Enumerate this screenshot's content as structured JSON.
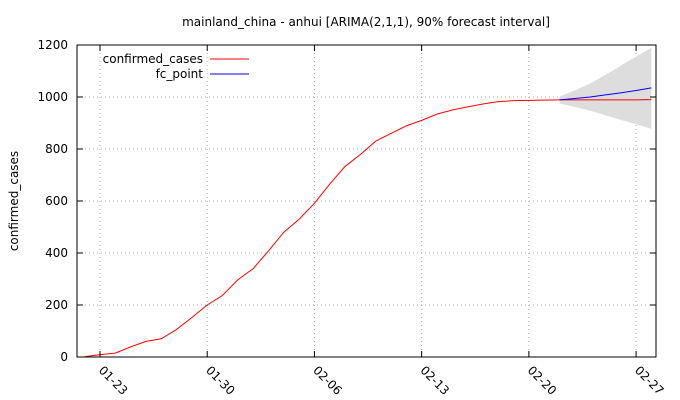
{
  "chart_data": {
    "type": "line",
    "title": "mainland_china - anhui [ARIMA(2,1,1), 90% forecast interval]",
    "xlabel": "",
    "ylabel": "confirmed_cases",
    "xlim": [
      "2020-01-21",
      "2020-02-28"
    ],
    "ylim": [
      0,
      1200
    ],
    "x_ticks": [
      "01-23",
      "01-30",
      "02-06",
      "02-13",
      "02-20",
      "02-27"
    ],
    "y_ticks": [
      0,
      200,
      400,
      600,
      800,
      1000,
      1200
    ],
    "grid": true,
    "legend_position": "top-left",
    "series": [
      {
        "name": "confirmed_cases",
        "color": "#ff0000",
        "points": [
          [
            "2020-01-22",
            1
          ],
          [
            "2020-01-23",
            9
          ],
          [
            "2020-01-24",
            15
          ],
          [
            "2020-01-25",
            39
          ],
          [
            "2020-01-26",
            60
          ],
          [
            "2020-01-27",
            70
          ],
          [
            "2020-01-28",
            106
          ],
          [
            "2020-01-29",
            152
          ],
          [
            "2020-01-30",
            200
          ],
          [
            "2020-01-31",
            237
          ],
          [
            "2020-02-01",
            297
          ],
          [
            "2020-02-02",
            340
          ],
          [
            "2020-02-03",
            408
          ],
          [
            "2020-02-04",
            480
          ],
          [
            "2020-02-05",
            530
          ],
          [
            "2020-02-06",
            591
          ],
          [
            "2020-02-07",
            665
          ],
          [
            "2020-02-08",
            733
          ],
          [
            "2020-02-09",
            779
          ],
          [
            "2020-02-10",
            830
          ],
          [
            "2020-02-11",
            860
          ],
          [
            "2020-02-12",
            889
          ],
          [
            "2020-02-13",
            910
          ],
          [
            "2020-02-14",
            934
          ],
          [
            "2020-02-15",
            950
          ],
          [
            "2020-02-16",
            962
          ],
          [
            "2020-02-17",
            973
          ],
          [
            "2020-02-18",
            982
          ],
          [
            "2020-02-19",
            986
          ],
          [
            "2020-02-20",
            987
          ],
          [
            "2020-02-21",
            988
          ],
          [
            "2020-02-22",
            989
          ],
          [
            "2020-02-23",
            989
          ],
          [
            "2020-02-24",
            989
          ],
          [
            "2020-02-25",
            989
          ],
          [
            "2020-02-26",
            989
          ],
          [
            "2020-02-27",
            989
          ],
          [
            "2020-02-28",
            990
          ]
        ]
      },
      {
        "name": "fc_point",
        "color": "#0000ff",
        "points": [
          [
            "2020-02-22",
            989
          ],
          [
            "2020-02-23",
            994
          ],
          [
            "2020-02-24",
            1000
          ],
          [
            "2020-02-25",
            1008
          ],
          [
            "2020-02-26",
            1016
          ],
          [
            "2020-02-27",
            1025
          ],
          [
            "2020-02-28",
            1035
          ]
        ]
      }
    ],
    "interval": {
      "label": "90% forecast interval",
      "color": "#dddddd",
      "points": [
        [
          "2020-02-22",
          975,
          1002
        ],
        [
          "2020-02-23",
          962,
          1025
        ],
        [
          "2020-02-24",
          947,
          1052
        ],
        [
          "2020-02-25",
          930,
          1085
        ],
        [
          "2020-02-26",
          912,
          1120
        ],
        [
          "2020-02-27",
          895,
          1155
        ],
        [
          "2020-02-28",
          878,
          1190
        ]
      ]
    }
  }
}
